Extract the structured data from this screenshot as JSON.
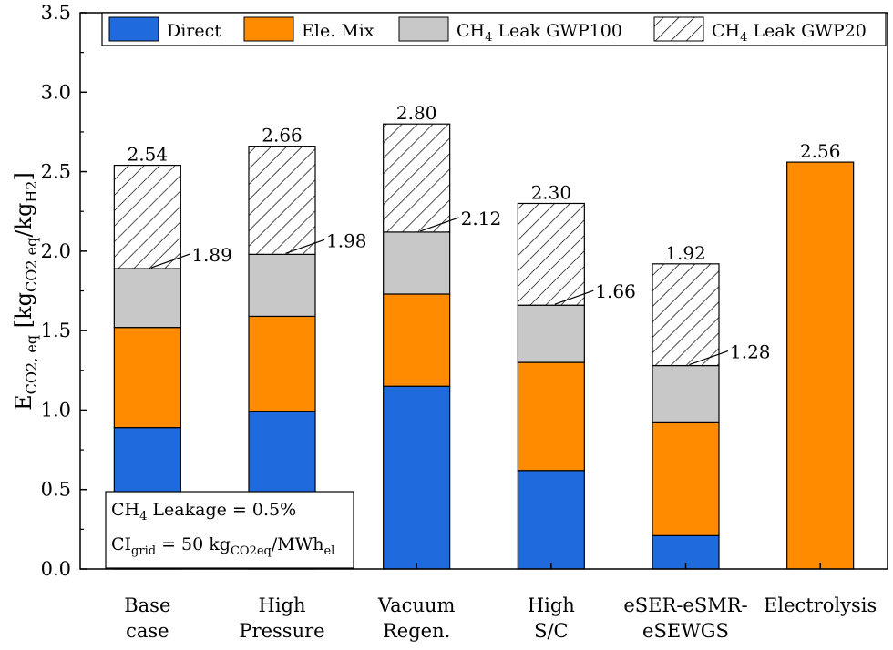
{
  "chart_data": {
    "type": "bar",
    "stacked": true,
    "ylabel": "E_{CO2, eq} [kg_{CO2 eq}/kg_{H2}]",
    "ylabel_parts": {
      "main": "E",
      "sub1": "CO2, eq",
      "bracket_open": " [kg",
      "sub2": "CO2 eq",
      "slash": "/kg",
      "sub3": "H2",
      "bracket_close": "]"
    },
    "xlabel": "",
    "ylim": [
      0,
      3.5
    ],
    "yticks": [
      "0.0",
      "0.5",
      "1.0",
      "1.5",
      "2.0",
      "2.5",
      "3.0",
      "3.5"
    ],
    "categories": [
      [
        "Base",
        "case"
      ],
      [
        "High",
        "Pressure"
      ],
      [
        "Vacuum",
        "Regen."
      ],
      [
        "High",
        "S/C"
      ],
      [
        "eSER-eSMR-",
        "eSEWGS"
      ],
      [
        "Electrolysis"
      ]
    ],
    "series": [
      {
        "name": "Direct",
        "color": "#1f6bde",
        "pattern": "solid",
        "values": [
          0.89,
          0.99,
          1.15,
          0.62,
          0.21,
          0.0
        ]
      },
      {
        "name": "Ele. Mix",
        "color": "#ff8c00",
        "pattern": "solid",
        "values": [
          0.63,
          0.6,
          0.58,
          0.68,
          0.71,
          2.56
        ]
      },
      {
        "name": "CH4 Leak GWP100",
        "color": "#c8c8c8",
        "pattern": "solid",
        "values": [
          0.37,
          0.39,
          0.39,
          0.36,
          0.36,
          0.0
        ]
      },
      {
        "name": "CH4 Leak GWP20",
        "color": "#ffffff",
        "pattern": "hatch",
        "values": [
          0.65,
          0.68,
          0.68,
          0.64,
          0.64,
          0.0
        ]
      }
    ],
    "legend": {
      "position": "top",
      "entries": [
        {
          "text": "Direct"
        },
        {
          "text": "Ele. Mix"
        },
        {
          "pre": "CH",
          "sub": "4",
          "post": " Leak GWP100"
        },
        {
          "pre": "CH",
          "sub": "4",
          "post": " Leak GWP20"
        }
      ]
    },
    "total_labels": [
      "2.54",
      "2.66",
      "2.80",
      "2.30",
      "1.92",
      "2.56"
    ],
    "gwp100_labels": [
      "1.89",
      "1.98",
      "2.12",
      "1.66",
      "1.28",
      null
    ],
    "annotation": {
      "line1": {
        "pre": "CH",
        "sub": "4",
        "post": " Leakage = 0.5%"
      },
      "line2": {
        "pre": "CI",
        "sub": "grid",
        "mid": " = 50 kg",
        "sub2": "CO2eq",
        "mid2": "/MWh",
        "sub3": "el"
      }
    },
    "grid": false
  }
}
